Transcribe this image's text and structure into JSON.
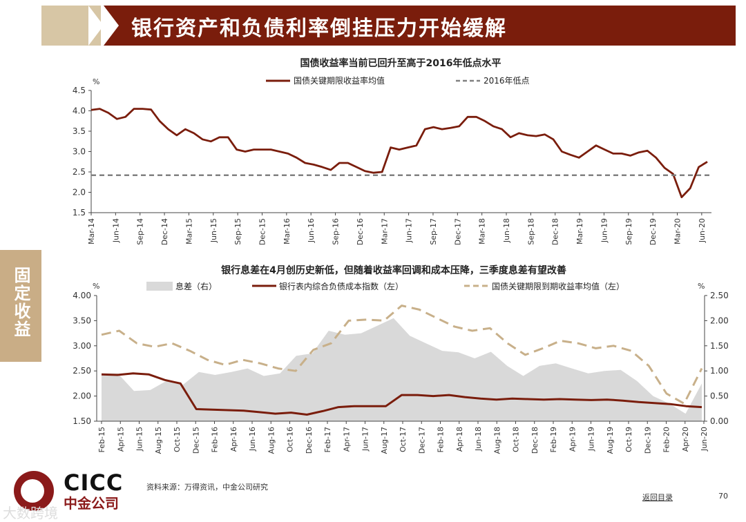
{
  "header": {
    "title": "银行资产和负债利率倒挂压力开始缓解"
  },
  "sidebar": {
    "tab_label": "固定收益"
  },
  "footer": {
    "logo_en": "CICC",
    "logo_cn": "中金公司",
    "source": "资料来源：万得资讯，中金公司研究",
    "back_link": "返回目录",
    "page_number": "70",
    "watermark": "大数跨境"
  },
  "colors": {
    "brand": "#7a1d0c",
    "line": "#7a1d0c",
    "dash_gray": "#808080",
    "tan": "#c8b08a",
    "area": "#d9d9d9"
  },
  "chart_data": [
    {
      "type": "line",
      "title": "国债收益率当前已回升至高于2016年低点水平",
      "ylabel": "%",
      "ylim": [
        1.5,
        4.5
      ],
      "yticks": [
        "4.5",
        "4.0",
        "3.5",
        "3.0",
        "2.5",
        "2.0",
        "1.5"
      ],
      "x_ticks": [
        "Mar-14",
        "Jun-14",
        "Sep-14",
        "Dec-14",
        "Mar-15",
        "Jun-15",
        "Sep-15",
        "Dec-15",
        "Mar-16",
        "Jun-16",
        "Sep-16",
        "Dec-16",
        "Mar-17",
        "Jun-17",
        "Sep-17",
        "Dec-17",
        "Mar-18",
        "Jun-18",
        "Sep-18",
        "Dec-18",
        "Mar-19",
        "Jun-19",
        "Sep-19",
        "Dec-19",
        "Mar-20",
        "Jun-20"
      ],
      "series": [
        {
          "name": "国债关键期限收益率均值",
          "color": "#7a1d0c",
          "style": "solid",
          "values": [
            4.02,
            4.05,
            3.95,
            3.8,
            3.85,
            4.05,
            4.05,
            4.03,
            3.75,
            3.55,
            3.4,
            3.55,
            3.45,
            3.3,
            3.25,
            3.35,
            3.35,
            3.05,
            3.0,
            3.05,
            3.05,
            3.05,
            3.0,
            2.95,
            2.85,
            2.72,
            2.68,
            2.62,
            2.55,
            2.72,
            2.72,
            2.62,
            2.52,
            2.48,
            2.5,
            3.1,
            3.05,
            3.1,
            3.15,
            3.55,
            3.6,
            3.55,
            3.58,
            3.62,
            3.85,
            3.85,
            3.75,
            3.62,
            3.55,
            3.35,
            3.45,
            3.4,
            3.38,
            3.42,
            3.3,
            3.0,
            2.92,
            2.85,
            3.0,
            3.15,
            3.05,
            2.95,
            2.95,
            2.9,
            2.98,
            3.02,
            2.85,
            2.6,
            2.45,
            1.88,
            2.1,
            2.62,
            2.75
          ]
        },
        {
          "name": "2016年低点",
          "color": "#808080",
          "style": "dashed",
          "values": [
            2.42
          ]
        }
      ]
    },
    {
      "type": "line",
      "title": "银行息差在4月创历史新低，但随着收益率回调和成本压降，三季度息差有望改善",
      "ylabel_left": "%",
      "ylabel_right": "%",
      "ylim_left": [
        1.5,
        4.0
      ],
      "ylim_right": [
        0.0,
        2.5
      ],
      "yticks_left": [
        "4.00",
        "3.50",
        "3.00",
        "2.50",
        "2.00",
        "1.50"
      ],
      "yticks_right": [
        "2.50",
        "2.00",
        "1.50",
        "1.00",
        "0.50",
        "0.00"
      ],
      "x_ticks": [
        "Feb-15",
        "Apr-15",
        "Jun-15",
        "Aug-15",
        "Oct-15",
        "Dec-15",
        "Feb-16",
        "Apr-16",
        "Jun-16",
        "Aug-16",
        "Oct-16",
        "Dec-16",
        "Feb-17",
        "Apr-17",
        "Jun-17",
        "Aug-17",
        "Oct-17",
        "Dec-17",
        "Feb-18",
        "Apr-18",
        "Jun-18",
        "Aug-18",
        "Oct-18",
        "Dec-18",
        "Feb-19",
        "Apr-19",
        "Jun-19",
        "Aug-19",
        "Oct-19",
        "Dec-19",
        "Feb-20",
        "Apr-20",
        "Jun-20"
      ],
      "series": [
        {
          "name": "息差（右）",
          "axis": "right",
          "type": "area",
          "color": "#d9d9d9",
          "values": [
            0.95,
            0.95,
            0.6,
            0.62,
            0.8,
            0.72,
            0.98,
            0.92,
            0.98,
            1.05,
            0.9,
            0.95,
            1.3,
            1.35,
            1.8,
            1.72,
            1.75,
            1.9,
            2.05,
            1.7,
            1.55,
            1.4,
            1.37,
            1.25,
            1.38,
            1.1,
            0.9,
            1.1,
            1.15,
            1.05,
            0.95,
            1.0,
            1.02,
            0.8,
            0.5,
            0.35,
            0.15,
            0.75
          ]
        },
        {
          "name": "银行表内综合负债成本指数（左）",
          "axis": "left",
          "type": "line",
          "color": "#7a1d0c",
          "values": [
            2.43,
            2.42,
            2.45,
            2.43,
            2.32,
            2.25,
            1.74,
            1.73,
            1.72,
            1.71,
            1.68,
            1.65,
            1.67,
            1.63,
            1.7,
            1.78,
            1.8,
            1.8,
            1.8,
            2.02,
            2.02,
            2.0,
            2.02,
            1.98,
            1.95,
            1.93,
            1.95,
            1.94,
            1.93,
            1.94,
            1.93,
            1.92,
            1.93,
            1.91,
            1.88,
            1.86,
            1.84,
            1.8,
            1.78
          ]
        },
        {
          "name": "国债关键期限到期收益率均值（左）",
          "axis": "left",
          "type": "line",
          "color": "#c8b08a",
          "style": "dashed",
          "values": [
            3.22,
            3.3,
            3.05,
            2.98,
            3.05,
            2.9,
            2.72,
            2.62,
            2.72,
            2.65,
            2.55,
            2.5,
            2.92,
            3.05,
            3.5,
            3.52,
            3.5,
            3.8,
            3.72,
            3.55,
            3.38,
            3.3,
            3.35,
            3.05,
            2.82,
            2.95,
            3.1,
            3.05,
            2.95,
            3.0,
            2.9,
            2.6,
            2.05,
            1.85,
            2.55
          ]
        }
      ]
    }
  ]
}
